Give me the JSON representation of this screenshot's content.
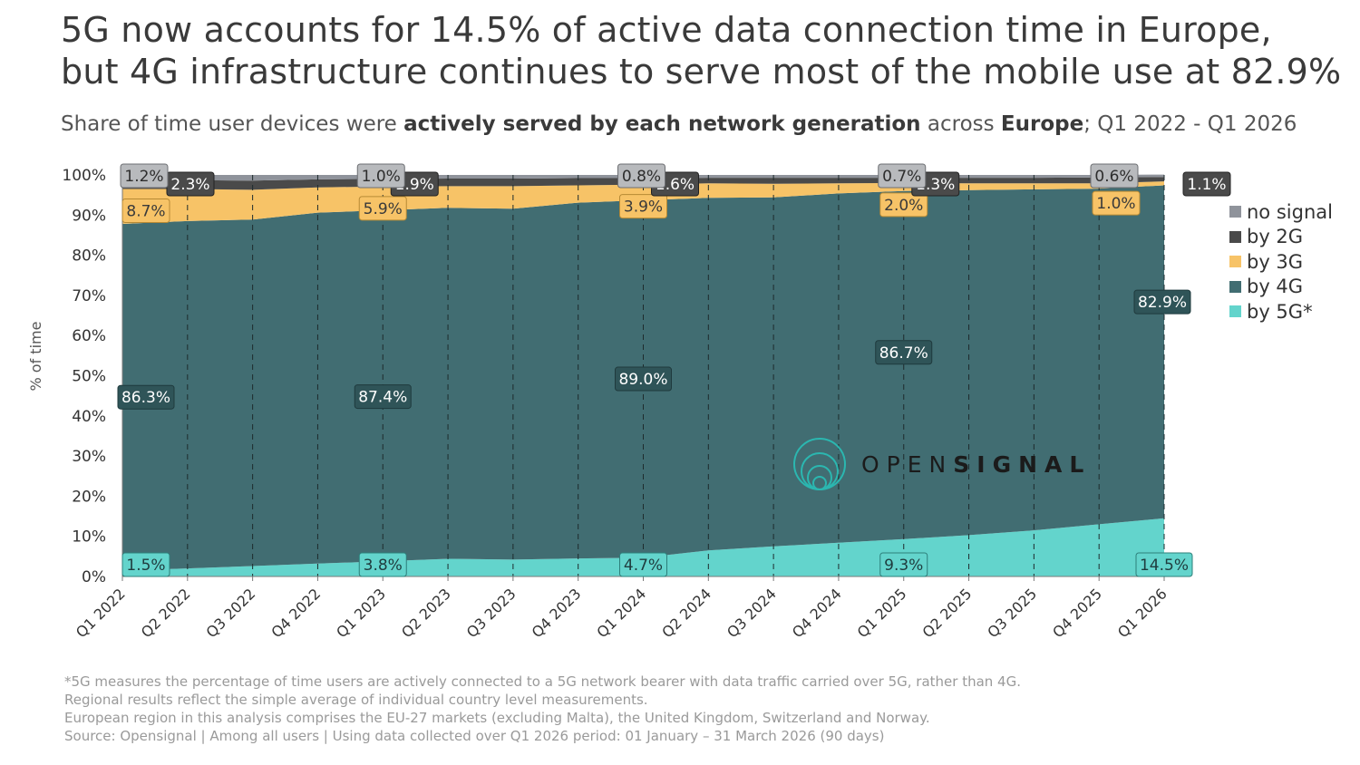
{
  "title_line1": "5G now accounts for 14.5% of active data connection time in Europe,",
  "title_line2": "but 4G infrastructure continues to serve most of the mobile use at 82.9%",
  "subtitle": {
    "part1": "Share of time user devices were ",
    "bold1": "actively served by each network generation",
    "part2": " across ",
    "bold2": "Europe",
    "part3": "; Q1 2022 - Q1 2026"
  },
  "footnotes": [
    "*5G measures the percentage of time users are actively connected to a 5G network bearer with data traffic carried over 5G, rather than 4G.",
    "Regional results reflect the simple average of individual country level measurements.",
    "European region in this analysis comprises the EU-27 markets (excluding Malta), the United Kingdom, Switzerland and Norway.",
    "Source: Opensignal  | Among all users |  Using data collected over Q1 2026 period: 01 January – 31 March 2026 (90 days)"
  ],
  "logo": {
    "text_light": "OPEN",
    "text_bold": "SIGNAL"
  },
  "colors": {
    "no_signal": "#8f939b",
    "by_2g": "#4a4a4a",
    "by_3g": "#f7c367",
    "by_4g": "#416d72",
    "by_5g": "#63d4cc",
    "logo": "#2bb7b0"
  },
  "chart_data": {
    "type": "area",
    "stacked": true,
    "ylabel": "% of time",
    "ylim": [
      0,
      100
    ],
    "yticks": [
      "0%",
      "10%",
      "20%",
      "30%",
      "40%",
      "50%",
      "60%",
      "70%",
      "80%",
      "90%",
      "100%"
    ],
    "categories": [
      "Q1 2022",
      "Q2 2022",
      "Q3 2022",
      "Q4 2022",
      "Q1 2023",
      "Q2 2023",
      "Q3 2023",
      "Q4 2023",
      "Q1 2024",
      "Q2 2024",
      "Q3 2024",
      "Q4 2024",
      "Q1 2025",
      "Q2 2025",
      "Q3 2025",
      "Q4 2025",
      "Q1 2026"
    ],
    "legend_position": "right",
    "series": [
      {
        "name": "by 5G*",
        "color": "#63d4cc",
        "values": [
          1.5,
          2.0,
          2.6,
          3.2,
          3.8,
          4.4,
          4.2,
          4.5,
          4.7,
          6.5,
          7.5,
          8.4,
          9.3,
          10.3,
          11.5,
          13.0,
          14.5
        ]
      },
      {
        "name": "by 4G",
        "color": "#416d72",
        "values": [
          86.3,
          86.5,
          86.3,
          87.4,
          87.4,
          87.4,
          87.4,
          88.6,
          89.0,
          87.8,
          86.9,
          87.0,
          86.7,
          85.9,
          84.9,
          83.6,
          82.9
        ]
      },
      {
        "name": "by 3G",
        "color": "#f7c367",
        "values": [
          8.7,
          8.0,
          7.4,
          6.3,
          5.9,
          5.4,
          5.6,
          4.3,
          3.9,
          3.6,
          3.4,
          2.5,
          2.0,
          1.7,
          1.5,
          1.3,
          1.0
        ]
      },
      {
        "name": "by 2G",
        "color": "#4a4a4a",
        "values": [
          2.3,
          2.2,
          2.3,
          2.0,
          1.9,
          1.9,
          1.9,
          1.8,
          1.6,
          1.4,
          1.5,
          1.4,
          1.3,
          1.4,
          1.4,
          1.5,
          1.1
        ]
      },
      {
        "name": "no signal",
        "color": "#8f939b",
        "values": [
          1.2,
          1.3,
          1.4,
          1.1,
          1.0,
          0.9,
          0.9,
          0.8,
          0.8,
          0.7,
          0.7,
          0.7,
          0.7,
          0.7,
          0.7,
          0.6,
          0.6
        ]
      }
    ],
    "data_labels": [
      {
        "series": "by 5G*",
        "index": 0,
        "text": "1.5%"
      },
      {
        "series": "by 5G*",
        "index": 4,
        "text": "3.8%"
      },
      {
        "series": "by 5G*",
        "index": 8,
        "text": "4.7%"
      },
      {
        "series": "by 5G*",
        "index": 12,
        "text": "9.3%"
      },
      {
        "series": "by 5G*",
        "index": 16,
        "text": "14.5%"
      },
      {
        "series": "by 4G",
        "index": 0,
        "text": "86.3%"
      },
      {
        "series": "by 4G",
        "index": 4,
        "text": "87.4%"
      },
      {
        "series": "by 4G",
        "index": 8,
        "text": "89.0%"
      },
      {
        "series": "by 4G",
        "index": 12,
        "text": "86.7%"
      },
      {
        "series": "by 4G",
        "index": 16,
        "text": "82.9%"
      },
      {
        "series": "by 3G",
        "index": 0,
        "text": "8.7%"
      },
      {
        "series": "by 3G",
        "index": 4,
        "text": "5.9%"
      },
      {
        "series": "by 3G",
        "index": 8,
        "text": "3.9%"
      },
      {
        "series": "by 3G",
        "index": 12,
        "text": "2.0%"
      },
      {
        "series": "by 3G",
        "index": 16,
        "text": "1.0%"
      },
      {
        "series": "by 2G",
        "index": 0,
        "text": "2.3%"
      },
      {
        "series": "by 2G",
        "index": 4,
        "text": "1.9%"
      },
      {
        "series": "by 2G",
        "index": 8,
        "text": "1.6%"
      },
      {
        "series": "by 2G",
        "index": 12,
        "text": "1.3%"
      },
      {
        "series": "by 2G",
        "index": 16,
        "text": "1.1%"
      },
      {
        "series": "no signal",
        "index": 0,
        "text": "1.2%"
      },
      {
        "series": "no signal",
        "index": 4,
        "text": "1.0%"
      },
      {
        "series": "no signal",
        "index": 8,
        "text": "0.8%"
      },
      {
        "series": "no signal",
        "index": 12,
        "text": "0.7%"
      },
      {
        "series": "no signal",
        "index": 16,
        "text": "0.6%"
      }
    ],
    "legend": [
      "no signal",
      "by 2G",
      "by 3G",
      "by 4G",
      "by 5G*"
    ]
  }
}
